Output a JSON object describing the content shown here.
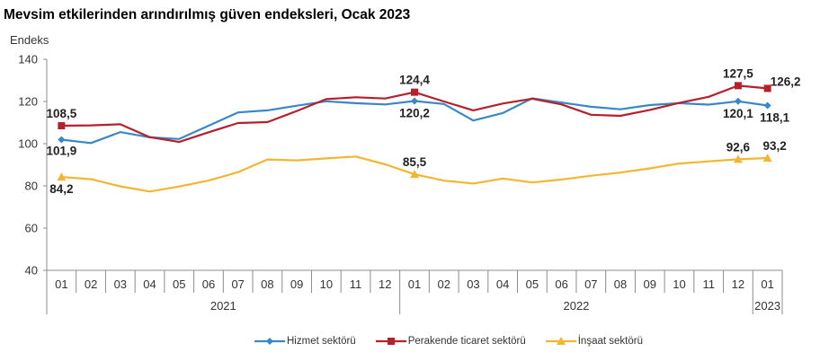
{
  "chart_data": {
    "type": "line",
    "title": "Mevsim etkilerinden arındırılmış güven endeksleri, Ocak 2023",
    "ylabel": "Endeks",
    "xlabel": "",
    "ylim": [
      40,
      140
    ],
    "yticks": [
      "40",
      "60",
      "80",
      "100",
      "120",
      "140"
    ],
    "ytick_values": [
      40,
      60,
      80,
      100,
      120,
      140
    ],
    "grid": false,
    "legend_position": "bottom",
    "categories": [
      "01",
      "02",
      "03",
      "04",
      "05",
      "06",
      "07",
      "08",
      "09",
      "10",
      "11",
      "12",
      "01",
      "02",
      "03",
      "04",
      "05",
      "06",
      "07",
      "08",
      "09",
      "10",
      "11",
      "12",
      "01"
    ],
    "year_groups": [
      {
        "label": "2021",
        "count": 12
      },
      {
        "label": "2022",
        "count": 12
      },
      {
        "label": "2023",
        "count": 1
      }
    ],
    "series": [
      {
        "name": "Hizmet sektörü",
        "color": "#3a87c8",
        "marker": "diamond",
        "values": [
          101.9,
          100.3,
          105.5,
          103.0,
          102.2,
          108.5,
          114.8,
          115.8,
          118.0,
          120.1,
          119.2,
          118.6,
          120.2,
          118.8,
          111.0,
          114.5,
          121.5,
          119.5,
          117.5,
          116.3,
          118.3,
          119.2,
          118.5,
          120.1,
          118.1
        ],
        "labels": [
          {
            "index": 0,
            "text": "101,9"
          },
          {
            "index": 12,
            "text": "120,2"
          },
          {
            "index": 23,
            "text": "120,1"
          },
          {
            "index": 24,
            "text": "118,1"
          }
        ]
      },
      {
        "name": "Perakende ticaret sektörü",
        "color": "#b5202a",
        "marker": "square",
        "values": [
          108.5,
          108.7,
          109.2,
          103.1,
          100.8,
          105.4,
          109.8,
          110.2,
          115.5,
          121.1,
          122.0,
          121.4,
          124.4,
          120.0,
          115.8,
          119.0,
          121.3,
          118.6,
          113.7,
          113.2,
          116.0,
          119.3,
          122.2,
          127.5,
          126.2
        ],
        "labels": [
          {
            "index": 0,
            "text": "108,5"
          },
          {
            "index": 12,
            "text": "124,4"
          },
          {
            "index": 23,
            "text": "127,5"
          },
          {
            "index": 24,
            "text": "126,2"
          }
        ]
      },
      {
        "name": "İnşaat sektörü",
        "color": "#f2b630",
        "marker": "triangle",
        "values": [
          84.2,
          83.2,
          79.8,
          77.3,
          79.7,
          82.5,
          86.5,
          92.5,
          92.1,
          93.0,
          93.9,
          90.2,
          85.5,
          82.5,
          81.1,
          83.5,
          81.6,
          83.0,
          84.8,
          86.3,
          88.3,
          90.6,
          91.6,
          92.6,
          93.2
        ],
        "labels": [
          {
            "index": 0,
            "text": "84,2"
          },
          {
            "index": 12,
            "text": "85,5"
          },
          {
            "index": 23,
            "text": "92,6"
          },
          {
            "index": 24,
            "text": "93,2"
          }
        ]
      }
    ]
  }
}
